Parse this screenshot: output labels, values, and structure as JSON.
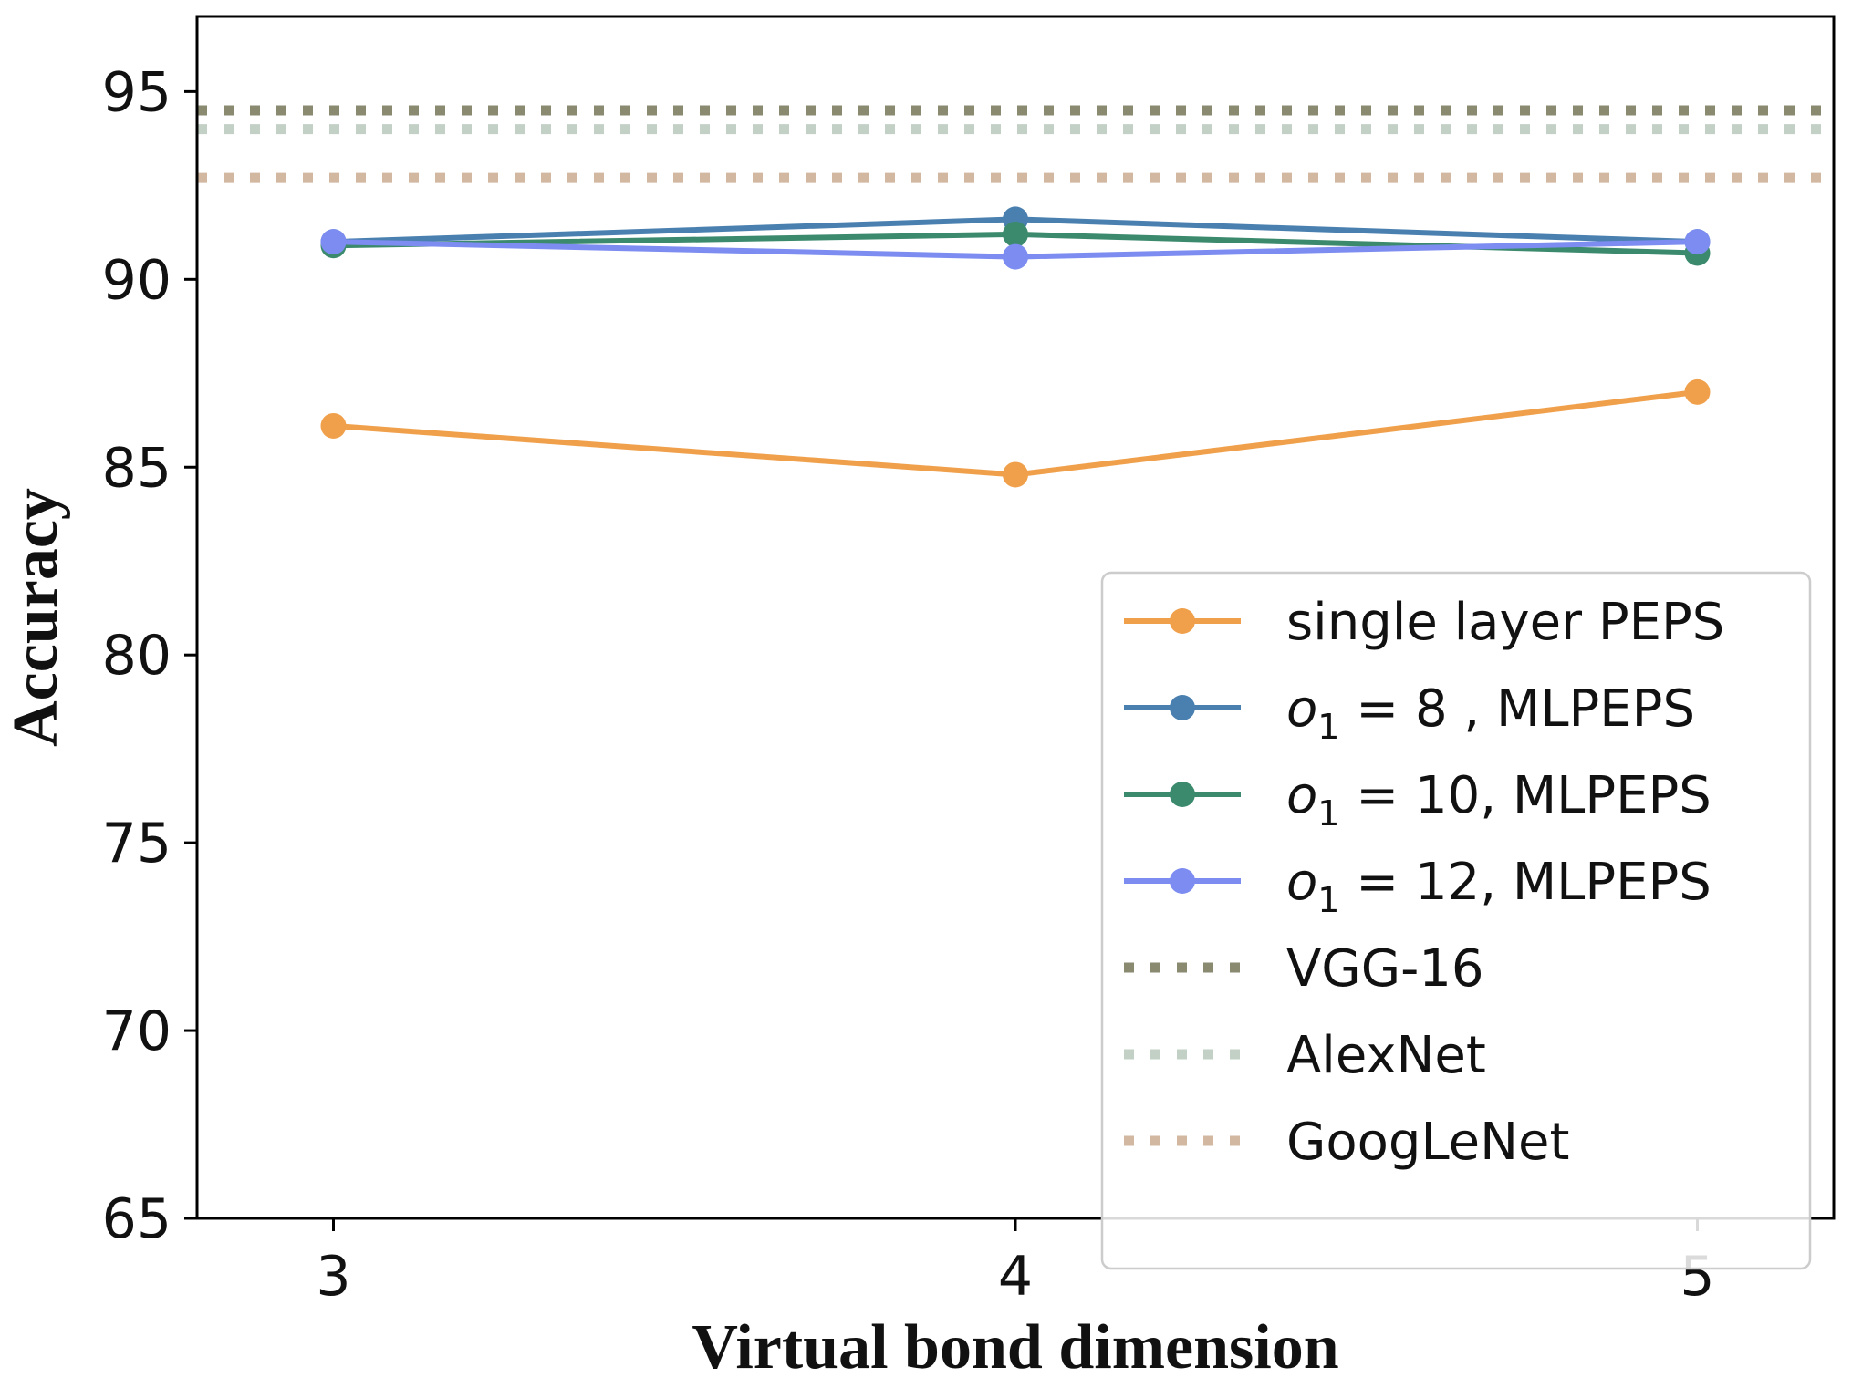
{
  "chart_data": {
    "type": "line",
    "title": "",
    "xlabel": "Virtual bond dimension",
    "ylabel": "Accuracy",
    "x": [
      3,
      4,
      5
    ],
    "xlim": [
      2.8,
      5.2
    ],
    "ylim": [
      65,
      97
    ],
    "xticks": [
      "3",
      "4",
      "5"
    ],
    "yticks": [
      "65",
      "70",
      "75",
      "80",
      "85",
      "90",
      "95"
    ],
    "grid": false,
    "legend_position": "lower-right",
    "series": [
      {
        "name": "single layer PEPS",
        "color": "#F0A04B",
        "values": [
          86.1,
          84.8,
          87.0
        ]
      },
      {
        "name": "o1 = 8 , MLPEPS",
        "legend_math": "o",
        "legend_sub": "1",
        "legend_rest": " = 8  , MLPEPS",
        "color": "#4A80B0",
        "values": [
          91.0,
          91.6,
          91.0
        ]
      },
      {
        "name": "o1 = 10, MLPEPS",
        "legend_math": "o",
        "legend_sub": "1",
        "legend_rest": " = 10, MLPEPS",
        "color": "#3C8A6E",
        "values": [
          90.9,
          91.2,
          90.7
        ]
      },
      {
        "name": "o1 = 12, MLPEPS",
        "legend_math": "o",
        "legend_sub": "1",
        "legend_rest": " = 12, MLPEPS",
        "color": "#7C8CF0",
        "values": [
          91.0,
          90.6,
          91.0
        ]
      }
    ],
    "reference_lines": [
      {
        "name": "VGG-16",
        "color": "#8A8A70",
        "value": 94.5
      },
      {
        "name": "AlexNet",
        "color": "#C2D0C6",
        "value": 94.0
      },
      {
        "name": "GoogLeNet",
        "color": "#D2B8A0",
        "value": 92.7
      }
    ]
  }
}
